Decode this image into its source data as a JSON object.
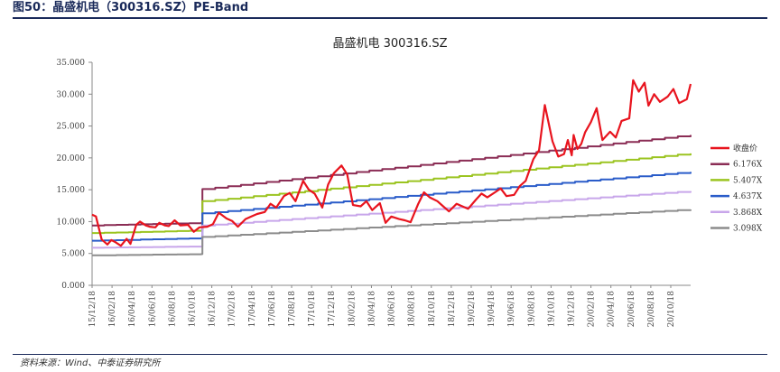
{
  "figure": {
    "caption": "图50：晶盛机电（300316.SZ）PE-Band",
    "source": "资料来源：Wind、中泰证券研究所"
  },
  "chart_data": {
    "type": "line",
    "title": "晶盛机电 300316.SZ",
    "xlabel": "",
    "ylabel": "",
    "ylim": [
      0,
      35
    ],
    "grid": false,
    "legend_position": "right",
    "y_ticks": [
      "0.000",
      "5.000",
      "10.000",
      "15.000",
      "20.000",
      "25.000",
      "30.000",
      "35.000"
    ],
    "x_ticks": [
      "15/12/18",
      "16/02/18",
      "16/04/18",
      "16/06/18",
      "16/08/18",
      "16/10/18",
      "16/12/18",
      "17/02/18",
      "17/04/18",
      "17/06/18",
      "17/08/18",
      "17/10/18",
      "17/12/18",
      "18/02/18",
      "18/04/18",
      "18/06/18",
      "18/08/18",
      "18/10/18",
      "18/12/18",
      "19/02/18",
      "19/04/18",
      "19/06/18",
      "19/08/18",
      "19/10/18",
      "19/12/18",
      "20/02/18",
      "20/04/18",
      "20/06/18",
      "20/08/18",
      "20/10/18"
    ],
    "series": [
      {
        "name": "收盘价",
        "color": "#e8141e",
        "x": [
          0,
          0.2,
          0.5,
          0.8,
          1.0,
          1.2,
          1.5,
          1.8,
          2.0,
          2.3,
          2.5,
          2.8,
          3.0,
          3.3,
          3.5,
          3.8,
          4.0,
          4.3,
          4.6,
          5.0,
          5.3,
          5.6,
          6.0,
          6.3,
          6.6,
          7.0,
          7.3,
          7.6,
          8.0,
          8.3,
          8.6,
          9.0,
          9.3,
          9.6,
          10.0,
          10.3,
          10.6,
          11.0,
          11.3,
          11.6,
          12.0,
          12.3,
          12.6,
          13.0,
          13.3,
          13.6,
          14.0,
          14.3,
          14.6,
          15.0,
          15.3,
          15.6,
          16.0,
          16.3,
          16.6,
          17.0,
          17.3,
          17.6,
          18.0,
          18.3,
          18.6,
          19.0,
          19.3,
          19.6,
          20.0,
          20.3,
          20.6,
          21.0,
          21.3,
          21.6,
          22.0,
          22.3,
          22.6,
          23.0,
          23.3,
          23.6,
          24.0,
          24.3,
          24.6,
          24.8,
          25.0,
          25.1,
          25.3,
          25.5,
          25.7,
          26.0,
          26.3,
          26.6,
          27.0,
          27.3,
          27.6,
          28.0,
          28.2,
          28.5,
          28.8,
          29.0,
          29.3,
          29.6,
          30.0,
          30.3,
          30.6,
          31.0,
          31.2
        ],
        "values": [
          11.1,
          10.8,
          7.2,
          6.4,
          7.1,
          6.8,
          6.2,
          7.3,
          6.5,
          9.5,
          10.0,
          9.4,
          9.2,
          9.1,
          9.8,
          9.4,
          9.3,
          10.2,
          9.4,
          9.5,
          8.4,
          9.1,
          9.2,
          9.6,
          11.4,
          10.5,
          10.1,
          9.2,
          10.4,
          10.8,
          11.2,
          11.5,
          12.8,
          12.2,
          14.0,
          14.5,
          13.2,
          16.4,
          15.0,
          14.4,
          12.2,
          15.8,
          17.6,
          18.8,
          17.4,
          12.6,
          12.4,
          13.2,
          11.8,
          12.9,
          9.8,
          10.8,
          10.4,
          10.2,
          9.9,
          12.8,
          14.6,
          13.8,
          13.2,
          12.4,
          11.6,
          12.8,
          12.4,
          12.0,
          13.4,
          14.4,
          13.8,
          14.6,
          15.2,
          14.0,
          14.2,
          15.6,
          16.4,
          19.8,
          21.2,
          28.3,
          22.6,
          20.2,
          20.6,
          22.8,
          20.4,
          23.6,
          21.4,
          22.2,
          24.0,
          25.6,
          27.8,
          22.8,
          24.1,
          23.2,
          25.8,
          26.2,
          32.2,
          30.4,
          31.8,
          28.2,
          30.0,
          28.8,
          29.6,
          30.8,
          28.6,
          29.2,
          31.6
        ]
      },
      {
        "name": "6.176X",
        "color": "#8b2d55",
        "x": [
          0,
          5.7,
          5.75,
          31.2
        ],
        "values": [
          9.4,
          9.8,
          15.1,
          23.6
        ]
      },
      {
        "name": "5.407X",
        "color": "#9bc420",
        "x": [
          0,
          5.7,
          5.75,
          31.2
        ],
        "values": [
          8.2,
          8.6,
          13.2,
          20.7
        ]
      },
      {
        "name": "4.637X",
        "color": "#2a5cc9",
        "x": [
          0,
          5.7,
          5.75,
          31.2
        ],
        "values": [
          7.0,
          7.4,
          11.3,
          17.8
        ]
      },
      {
        "name": "3.868X",
        "color": "#c8a6ea",
        "x": [
          0,
          5.7,
          5.75,
          31.2
        ],
        "values": [
          5.9,
          6.1,
          9.4,
          14.8
        ]
      },
      {
        "name": "3.098X",
        "color": "#8c8c8c",
        "x": [
          0,
          5.7,
          5.75,
          31.2
        ],
        "values": [
          4.7,
          4.9,
          7.6,
          11.9
        ]
      }
    ]
  }
}
